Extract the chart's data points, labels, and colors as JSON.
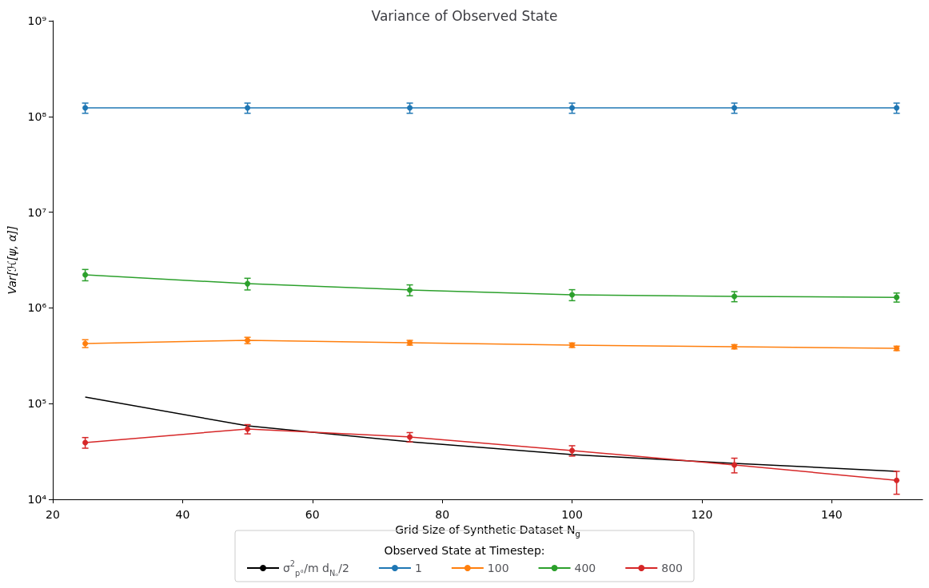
{
  "chart_data": {
    "type": "line",
    "title": "Variance of Observed State",
    "xlabel": "Grid Size of Synthetic Dataset N$_{g}$",
    "ylabel": "Var[ℋ[ψ, α]]",
    "legend_title": "Observed State at Timestep:",
    "legend": "bottom",
    "log": "y",
    "marker": "circle",
    "grid": false,
    "xlim": [
      20,
      154
    ],
    "xticks": [
      20,
      40,
      60,
      80,
      100,
      120,
      140
    ],
    "ylim": [
      10000,
      1000000000
    ],
    "yticks": [
      {
        "value": 10000,
        "label": "10⁴"
      },
      {
        "value": 100000,
        "label": "10⁵"
      },
      {
        "value": 1000000,
        "label": "10⁶"
      },
      {
        "value": 10000000,
        "label": "10⁷"
      },
      {
        "value": 100000000,
        "label": "10⁸"
      },
      {
        "value": 1000000000,
        "label": "10⁹"
      }
    ],
    "x": [
      25,
      50,
      75,
      100,
      125,
      150
    ],
    "series": [
      {
        "name": "σ$^{2}$$_{p°}$/m d$_{Nₒ}$/2",
        "color": "#000000",
        "marker": "none",
        "values": [
          117000,
          58600,
          39900,
          29300,
          23800,
          19600
        ]
      },
      {
        "name": "1",
        "color": "#1f77b4",
        "values": [
          123000000,
          123000000,
          123000000,
          123000000,
          123000000,
          123000000
        ],
        "errors": [
          15000000,
          15000000,
          15000000,
          15000000,
          15000000,
          15000000
        ]
      },
      {
        "name": "100",
        "color": "#ff7f0e",
        "values": [
          425000,
          458000,
          433000,
          408000,
          393000,
          378000
        ],
        "errors": [
          40000,
          35000,
          25000,
          22000,
          20000,
          20000
        ]
      },
      {
        "name": "400",
        "color": "#2ca02c",
        "values": [
          2220000,
          1790000,
          1540000,
          1370000,
          1320000,
          1290000
        ],
        "errors": [
          300000,
          250000,
          200000,
          180000,
          160000,
          140000
        ]
      },
      {
        "name": "800",
        "color": "#d62728",
        "values": [
          39200,
          54300,
          44800,
          32300,
          22900,
          15800
        ],
        "errors": [
          5000,
          6000,
          5000,
          4000,
          4000,
          [
            11300,
            19600
          ]
        ]
      }
    ]
  }
}
